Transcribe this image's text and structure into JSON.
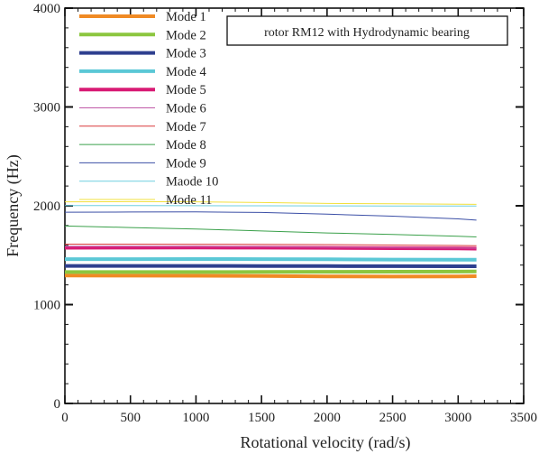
{
  "chart_data": {
    "type": "line",
    "annotation": "rotor RM12  with Hydrodynamic bearing",
    "xlabel": "Rotational velocity (rad/s)",
    "ylabel": "Frequency (Hz)",
    "xlim": [
      0,
      3500
    ],
    "ylim": [
      0,
      4000
    ],
    "x_ticks": [
      0,
      500,
      1000,
      1500,
      2000,
      2500,
      3000,
      3500
    ],
    "y_ticks": [
      0,
      1000,
      2000,
      3000,
      4000
    ],
    "x_tick_labels": [
      "0",
      "500",
      "1000",
      "1500",
      "2000",
      "2500",
      "3000",
      "3500"
    ],
    "y_tick_labels": [
      "0",
      "1000",
      "2000",
      "3000",
      "4000"
    ],
    "grid": false,
    "legend_position": "top-left",
    "x": [
      0,
      500,
      1000,
      1500,
      2000,
      2500,
      3000,
      3140
    ],
    "series": [
      {
        "name": "Mode 1",
        "color": "#f08a24",
        "width": 4,
        "values": [
          1295,
          1293,
          1292,
          1290,
          1286,
          1284,
          1286,
          1288
        ]
      },
      {
        "name": "Mode 2",
        "color": "#8cc63f",
        "width": 4,
        "values": [
          1330,
          1330,
          1330,
          1331,
          1332,
          1333,
          1334,
          1335
        ]
      },
      {
        "name": "Mode 3",
        "color": "#2e3f8f",
        "width": 4,
        "values": [
          1392,
          1392,
          1392,
          1391,
          1390,
          1389,
          1388,
          1388
        ]
      },
      {
        "name": "Mode 4",
        "color": "#5bc8d6",
        "width": 4,
        "values": [
          1460,
          1460,
          1461,
          1460,
          1458,
          1456,
          1455,
          1455
        ]
      },
      {
        "name": "Mode 5",
        "color": "#d81b74",
        "width": 4,
        "values": [
          1575,
          1576,
          1577,
          1576,
          1574,
          1571,
          1568,
          1566
        ]
      },
      {
        "name": "Mode 6",
        "color": "#c05aa8",
        "width": 1,
        "values": [
          1590,
          1590,
          1588,
          1585,
          1580,
          1575,
          1572,
          1570
        ]
      },
      {
        "name": "Mode 7",
        "color": "#d9383a",
        "width": 1,
        "values": [
          1612,
          1612,
          1611,
          1610,
          1607,
          1603,
          1598,
          1596
        ]
      },
      {
        "name": "Mode 8",
        "color": "#3aa04a",
        "width": 1,
        "values": [
          1795,
          1780,
          1765,
          1745,
          1725,
          1710,
          1692,
          1685
        ]
      },
      {
        "name": "Mode 9",
        "color": "#3b4fa6",
        "width": 1,
        "values": [
          1935,
          1937,
          1938,
          1932,
          1915,
          1895,
          1868,
          1855
        ]
      },
      {
        "name": "Maode 10",
        "color": "#6ecfe0",
        "width": 1,
        "values": [
          2002,
          2002,
          2001,
          2000,
          1999,
          1998,
          1997,
          1997
        ]
      },
      {
        "name": "Mode 11",
        "color": "#f2e03c",
        "width": 1,
        "values": [
          2040,
          2042,
          2040,
          2033,
          2024,
          2020,
          2016,
          2015
        ]
      }
    ]
  }
}
